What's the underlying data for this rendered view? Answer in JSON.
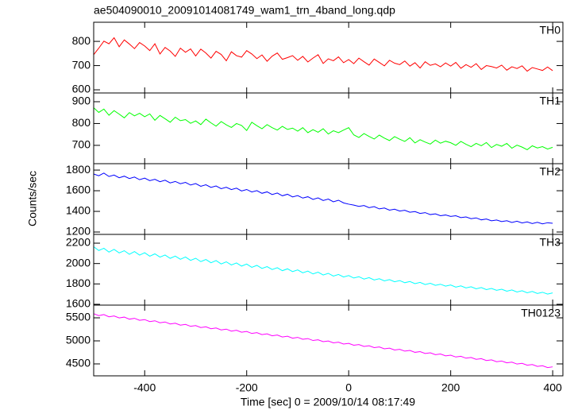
{
  "title": "ae504090010_20091014081749_wam1_trn_4band_long.qdp",
  "ylabel": "Counts/sec",
  "xlabel": "Time [sec] 0 = 2009/10/14 08:17:49",
  "xlim": [
    -500,
    420
  ],
  "xticks": [
    -400,
    -200,
    0,
    200,
    400
  ],
  "x": [
    -500,
    -490,
    -480,
    -470,
    -460,
    -450,
    -440,
    -430,
    -420,
    -410,
    -400,
    -390,
    -380,
    -370,
    -360,
    -350,
    -340,
    -330,
    -320,
    -310,
    -300,
    -290,
    -280,
    -270,
    -260,
    -250,
    -240,
    -230,
    -220,
    -210,
    -200,
    -190,
    -180,
    -170,
    -160,
    -150,
    -140,
    -130,
    -120,
    -110,
    -100,
    -90,
    -80,
    -70,
    -60,
    -50,
    -40,
    -30,
    -20,
    -10,
    0,
    10,
    20,
    30,
    40,
    50,
    60,
    70,
    80,
    90,
    100,
    110,
    120,
    130,
    140,
    150,
    160,
    170,
    180,
    190,
    200,
    210,
    220,
    230,
    240,
    250,
    260,
    270,
    280,
    290,
    300,
    310,
    320,
    330,
    340,
    350,
    360,
    370,
    380,
    390,
    400
  ],
  "chart_data": [
    {
      "type": "line",
      "ylim": [
        587,
        879
      ],
      "yticks": [
        600,
        700,
        800
      ],
      "series": [
        {
          "name": "TH0",
          "color": "#ff0000",
          "values": [
            745,
            772,
            801,
            790,
            815,
            778,
            806,
            789,
            770,
            795,
            781,
            762,
            790,
            748,
            775,
            760,
            738,
            772,
            755,
            769,
            740,
            768,
            752,
            731,
            759,
            746,
            720,
            757,
            741,
            735,
            762,
            748,
            729,
            744,
            718,
            739,
            752,
            726,
            733,
            741,
            722,
            738,
            715,
            731,
            745,
            709,
            728,
            720,
            736,
            712,
            725,
            708,
            731,
            716,
            702,
            727,
            713,
            699,
            722,
            710,
            704,
            719,
            698,
            712,
            690,
            716,
            701,
            707,
            695,
            711,
            698,
            713,
            689,
            704,
            693,
            708,
            684,
            700,
            696,
            690,
            702,
            681,
            695,
            688,
            699,
            677,
            692,
            686,
            680,
            694,
            679
          ]
        }
      ]
    },
    {
      "type": "line",
      "ylim": [
        616,
        940
      ],
      "yticks": [
        700,
        800,
        900
      ],
      "series": [
        {
          "name": "TH1",
          "color": "#00ff00",
          "values": [
            872,
            851,
            866,
            838,
            859,
            843,
            826,
            850,
            835,
            847,
            831,
            844,
            815,
            837,
            822,
            806,
            829,
            813,
            818,
            801,
            812,
            795,
            820,
            803,
            788,
            809,
            794,
            782,
            800,
            791,
            768,
            806,
            790,
            776,
            795,
            781,
            770,
            787,
            773,
            779,
            765,
            781,
            758,
            772,
            760,
            776,
            752,
            767,
            758,
            770,
            781,
            748,
            736,
            754,
            741,
            729,
            747,
            733,
            722,
            740,
            728,
            718,
            735,
            711,
            726,
            715,
            706,
            724,
            710,
            719,
            712,
            700,
            718,
            705,
            694,
            709,
            698,
            713,
            690,
            704,
            696,
            709,
            687,
            701,
            692,
            680,
            698,
            688,
            694,
            683,
            691
          ]
        }
      ]
    },
    {
      "type": "line",
      "ylim": [
        1177,
        1862
      ],
      "yticks": [
        1200,
        1400,
        1600,
        1800
      ],
      "series": [
        {
          "name": "TH2",
          "color": "#0000ff",
          "values": [
            1762,
            1745,
            1771,
            1738,
            1752,
            1726,
            1741,
            1718,
            1733,
            1707,
            1722,
            1698,
            1711,
            1687,
            1702,
            1676,
            1690,
            1668,
            1681,
            1655,
            1669,
            1643,
            1658,
            1632,
            1646,
            1620,
            1634,
            1611,
            1625,
            1598,
            1612,
            1588,
            1601,
            1575,
            1589,
            1563,
            1578,
            1551,
            1566,
            1540,
            1553,
            1529,
            1542,
            1516,
            1531,
            1505,
            1519,
            1493,
            1508,
            1482,
            1470,
            1461,
            1448,
            1457,
            1436,
            1446,
            1424,
            1433,
            1412,
            1421,
            1403,
            1411,
            1392,
            1398,
            1380,
            1388,
            1369,
            1376,
            1358,
            1365,
            1351,
            1358,
            1340,
            1346,
            1329,
            1337,
            1318,
            1326,
            1309,
            1316,
            1301,
            1310,
            1293,
            1305,
            1288,
            1298,
            1282,
            1294,
            1279,
            1290,
            1285
          ]
        }
      ]
    },
    {
      "type": "line",
      "ylim": [
        1592,
        2286
      ],
      "yticks": [
        1600,
        1800,
        2000,
        2200
      ],
      "series": [
        {
          "name": "TH3",
          "color": "#00ffff",
          "values": [
            2165,
            2128,
            2150,
            2112,
            2139,
            2104,
            2126,
            2091,
            2118,
            2083,
            2106,
            2072,
            2095,
            2063,
            2084,
            2051,
            2073,
            2042,
            2064,
            2031,
            2052,
            2019,
            2040,
            2008,
            2029,
            1996,
            2017,
            1986,
            2006,
            1975,
            1995,
            1963,
            1982,
            1952,
            1970,
            1941,
            1959,
            1930,
            1948,
            1921,
            1938,
            1909,
            1926,
            1898,
            1915,
            1888,
            1904,
            1877,
            1893,
            1868,
            1882,
            1858,
            1871,
            1848,
            1862,
            1839,
            1851,
            1830,
            1842,
            1821,
            1833,
            1812,
            1824,
            1803,
            1815,
            1794,
            1806,
            1786,
            1797,
            1778,
            1790,
            1769,
            1781,
            1761,
            1772,
            1752,
            1764,
            1744,
            1756,
            1737,
            1748,
            1729,
            1741,
            1721,
            1733,
            1713,
            1726,
            1706,
            1718,
            1700,
            1712
          ]
        }
      ]
    },
    {
      "type": "line",
      "ylim": [
        4241,
        5776
      ],
      "yticks": [
        4500,
        5000,
        5500
      ],
      "series": [
        {
          "name": "TH0123",
          "color": "#ff00ff",
          "values": [
            5590,
            5548,
            5571,
            5522,
            5540,
            5498,
            5516,
            5471,
            5490,
            5447,
            5462,
            5418,
            5436,
            5392,
            5410,
            5366,
            5384,
            5341,
            5358,
            5316,
            5332,
            5289,
            5306,
            5263,
            5280,
            5238,
            5255,
            5212,
            5230,
            5188,
            5204,
            5161,
            5178,
            5136,
            5153,
            5111,
            5127,
            5085,
            5101,
            5059,
            5076,
            5034,
            5050,
            5008,
            5024,
            4983,
            4998,
            4957,
            4972,
            4931,
            4945,
            4905,
            4920,
            4879,
            4894,
            4853,
            4868,
            4828,
            4843,
            4802,
            4817,
            4777,
            4792,
            4751,
            4766,
            4726,
            4741,
            4700,
            4715,
            4675,
            4690,
            4650,
            4665,
            4624,
            4639,
            4599,
            4614,
            4573,
            4588,
            4548,
            4563,
            4523,
            4538,
            4497,
            4512,
            4472,
            4487,
            4446,
            4461,
            4421,
            4436
          ]
        }
      ]
    }
  ]
}
